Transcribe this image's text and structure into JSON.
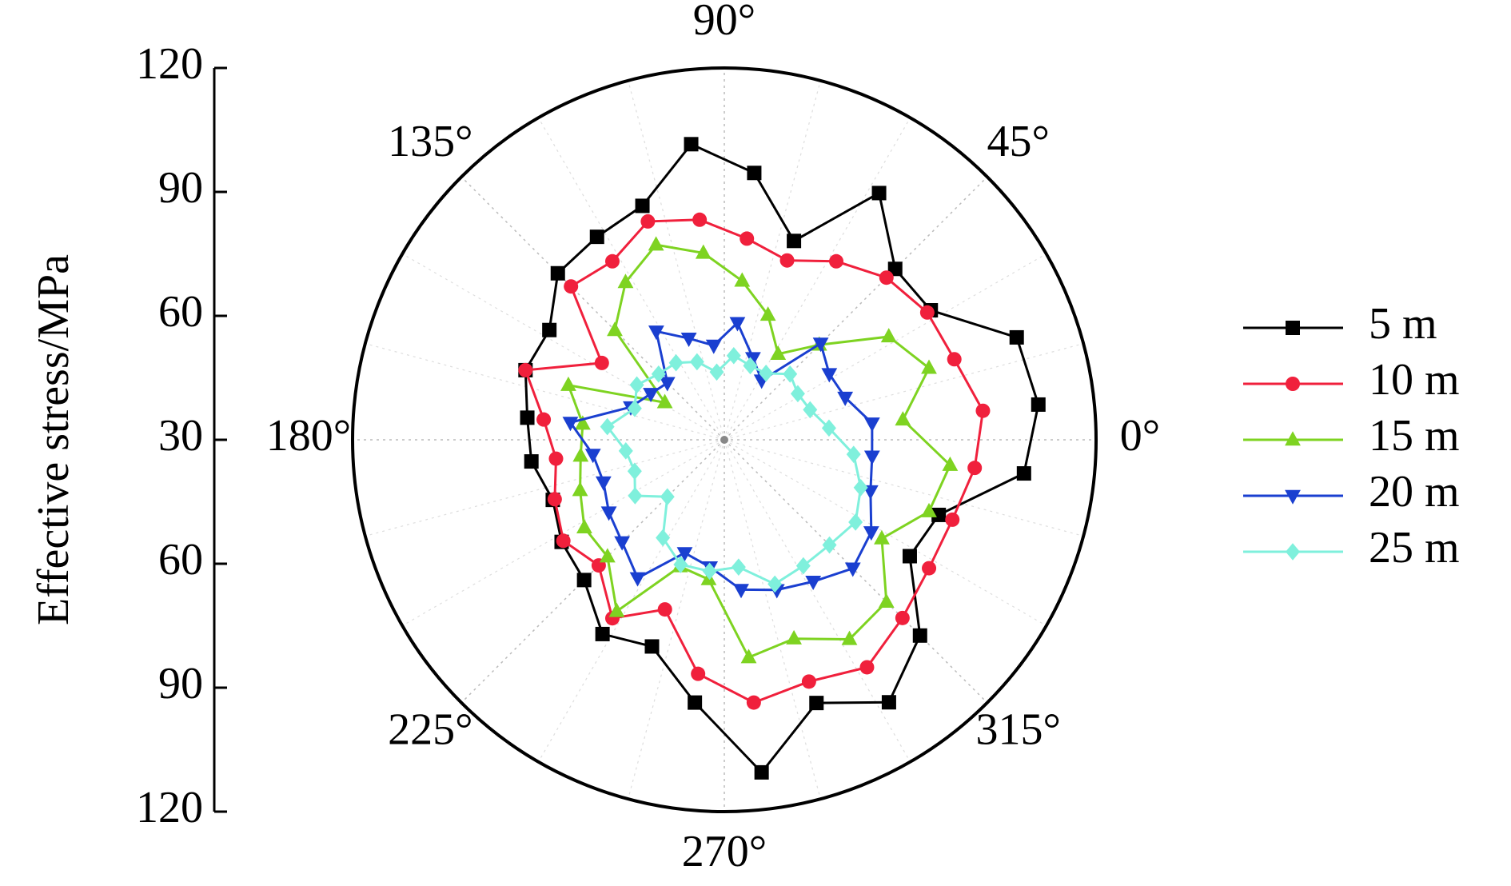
{
  "chart_data": {
    "type": "polar",
    "ylabel": "Effective stress/MPa",
    "theta": [
      6.4,
      19.3,
      32.1,
      45,
      57.9,
      70.7,
      83.6,
      96.4,
      109.3,
      122.1,
      135,
      147.9,
      160.7,
      173.6,
      186.4,
      199.3,
      212.1,
      225,
      237.9,
      250.7,
      263.6,
      276.4,
      289.3,
      302.1,
      315,
      327.9,
      340.7,
      353.6
    ],
    "rlim": [
      30,
      120
    ],
    "rticks": [
      30,
      60,
      90,
      120
    ],
    "thetaticks": [
      {
        "value": 0,
        "label": "0°"
      },
      {
        "value": 45,
        "label": "45°"
      },
      {
        "value": 90,
        "label": "90°"
      },
      {
        "value": 135,
        "label": "135°"
      },
      {
        "value": 180,
        "label": "180°"
      },
      {
        "value": 225,
        "label": "225°"
      },
      {
        "value": 270,
        "label": "270°"
      },
      {
        "value": 315,
        "label": "315°"
      }
    ],
    "grid": true,
    "legend": "right",
    "series": [
      {
        "name": "5 m",
        "color": "#000000",
        "marker": "square",
        "values": [
          106.5,
          105,
          89,
          88.5,
          100.5,
          81,
          95,
          102,
          90,
          88,
          87,
          80,
          81,
          78,
          77,
          74,
          76.5,
          78,
          85.5,
          83,
          94,
          111,
          97.5,
          105,
          97,
          83,
          85,
          103
        ]
      },
      {
        "name": "10 m",
        "color": "#f0203c",
        "marker": "circle",
        "values": [
          93,
          89,
          88,
          85.5,
          81,
          76,
          79,
          83.6,
          86,
          81,
          82.5,
          65,
          81,
          74,
          71,
          73.5,
          76,
          73,
          81,
          73.5,
          87,
          94,
          92,
          95,
          91,
          88.5,
          88.5,
          91
        ]
      },
      {
        "name": "15 m",
        "color": "#7ed321",
        "marker": "triangle-up",
        "values": [
          73.5,
          82.5,
          77,
          62.5,
          54.5,
          62,
          68.7,
          75.5,
          80,
          75,
          67.5,
          47,
          70,
          64.5,
          65,
          67,
          70,
          70,
          79,
          62.5,
          64,
          83,
          81,
          87,
          85.5,
          75,
          82.5,
          85
        ]
      },
      {
        "name": "20 m",
        "color": "#1a3fd0",
        "marker": "triangle-down",
        "values": [
          66,
          61,
          60,
          63,
          47,
          51,
          58.5,
          53,
          56,
          61,
          49.5,
          51,
          54,
          67.5,
          62,
          61,
          63,
          65,
          69.5,
          59,
          61,
          66.5,
          68.5,
          70.5,
          74,
          72,
          67.5,
          66
        ]
      },
      {
        "name": "25 m",
        "color": "#7ff0dc",
        "marker": "diamond",
        "values": [
          55.5,
          52,
          51,
          52.5,
          49,
          49,
          50.5,
          46.5,
          50,
          52,
          52.5,
          55,
          53,
          58.5,
          54,
          53,
          55.5,
          49.5,
          58,
          62,
          62,
          61,
          67,
          66,
          66,
          67.5,
          65,
          61.5
        ]
      }
    ]
  }
}
